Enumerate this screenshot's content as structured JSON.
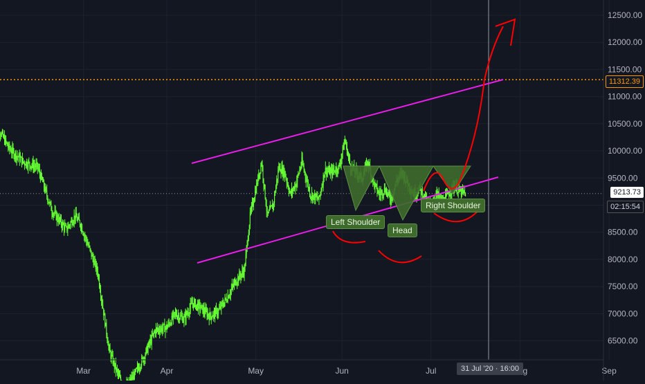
{
  "chart_data": {
    "type": "candlestick",
    "title": "",
    "y_axis": {
      "min": 6150,
      "max": 12780,
      "ticks": [
        6500,
        7000,
        7500,
        8000,
        8500,
        9000,
        9500,
        10000,
        10500,
        11000,
        11500,
        12000,
        12500
      ],
      "tick_labels": [
        "6500.00",
        "7000.00",
        "7500.00",
        "8000.00",
        "8500.00",
        "9000.00",
        "9500.00",
        "10000.00",
        "10500.00",
        "11000.00",
        "11500.00",
        "12000.00",
        "12500.00"
      ]
    },
    "x_axis": {
      "ticks": [
        "Mar",
        "Apr",
        "May",
        "Jun",
        "Jul",
        "Aug",
        "Sep"
      ],
      "day_index": [
        31,
        60,
        91,
        121,
        152,
        183,
        214
      ]
    },
    "price_path": [
      [
        0,
        10550
      ],
      [
        5,
        10050
      ],
      [
        10,
        9800
      ],
      [
        15,
        9700
      ],
      [
        20,
        8900
      ],
      [
        25,
        8550
      ],
      [
        28,
        8800
      ],
      [
        30,
        8650
      ],
      [
        33,
        8200
      ],
      [
        36,
        7750
      ],
      [
        40,
        6300
      ],
      [
        45,
        5600
      ],
      [
        48,
        5800
      ],
      [
        52,
        6200
      ],
      [
        56,
        6700
      ],
      [
        60,
        6750
      ],
      [
        63,
        7000
      ],
      [
        66,
        6900
      ],
      [
        69,
        7200
      ],
      [
        72,
        7100
      ],
      [
        75,
        6950
      ],
      [
        78,
        7050
      ],
      [
        81,
        7300
      ],
      [
        84,
        7600
      ],
      [
        87,
        7800
      ],
      [
        89,
        8800
      ],
      [
        91,
        9300
      ],
      [
        93,
        9800
      ],
      [
        95,
        8800
      ],
      [
        97,
        9000
      ],
      [
        99,
        9700
      ],
      [
        101,
        9600
      ],
      [
        103,
        9200
      ],
      [
        105,
        9400
      ],
      [
        107,
        9800
      ],
      [
        110,
        9200
      ],
      [
        113,
        9100
      ],
      [
        115,
        9650
      ],
      [
        117,
        9600
      ],
      [
        120,
        9700
      ],
      [
        122,
        10200
      ],
      [
        124,
        9700
      ],
      [
        126,
        9600
      ],
      [
        128,
        9500
      ],
      [
        130,
        9800
      ],
      [
        132,
        9400
      ],
      [
        134,
        9200
      ],
      [
        136,
        9300
      ],
      [
        138,
        9100
      ],
      [
        140,
        9450
      ],
      [
        142,
        9600
      ],
      [
        144,
        9400
      ],
      [
        146,
        9200
      ],
      [
        148,
        9300
      ],
      [
        150,
        9100
      ],
      [
        152,
        9000
      ],
      [
        154,
        9200
      ],
      [
        156,
        9050
      ],
      [
        158,
        9200
      ],
      [
        160,
        9350
      ],
      [
        162,
        9250
      ],
      [
        164,
        9213
      ]
    ],
    "last_price": "9213.73",
    "countdown": "02:15:54",
    "level_line": {
      "value": 11312.39,
      "label": "11312.39"
    },
    "crosshair": {
      "label": "31 Jul '20 · 16:00"
    },
    "annotations": [
      "Left Shoulder",
      "Head",
      "Right Shoulder"
    ],
    "colors": {
      "up": "#4caf50",
      "candle": "#66ff33",
      "channel": "#e91ee9",
      "level": "#ff9800",
      "projection": "#ff0000",
      "pattern_fill": "#3e6b2c"
    }
  }
}
